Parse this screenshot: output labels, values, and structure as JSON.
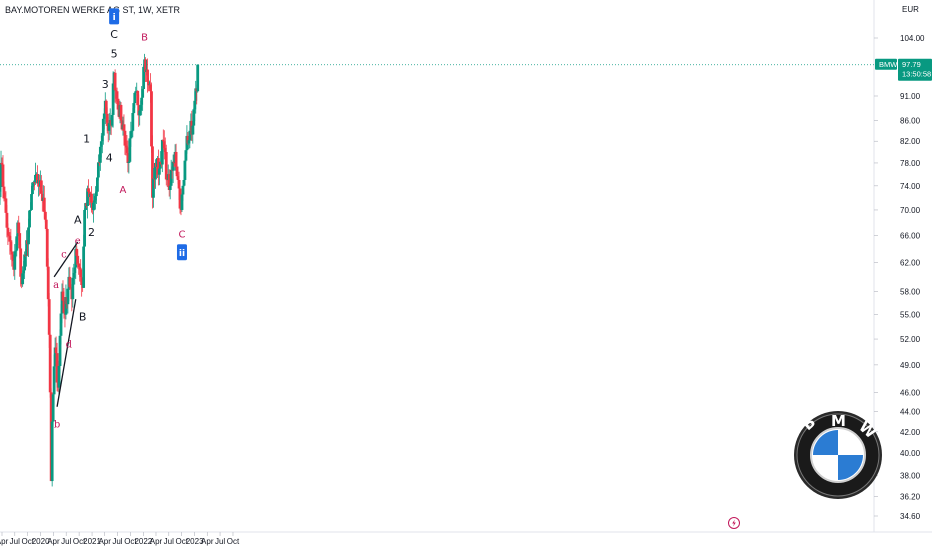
{
  "header": {
    "symbol_title": "BAY.MOTOREN WERKE AG ST, 1W, XETR",
    "currency": "EUR"
  },
  "price_badge": {
    "ticker": "BMW",
    "price": "97.79",
    "countdown": "13:50:58",
    "color": "#089981"
  },
  "colors": {
    "up": "#089981",
    "down": "#f23645",
    "wave_black": "#131722",
    "wave_red": "#c2185b",
    "badge_blue": "#1e6be6"
  },
  "chart_data": {
    "type": "candlestick",
    "title": "BAY.MOTOREN WERKE AG ST, 1W, XETR",
    "xlabel": "",
    "ylabel": "EUR",
    "ylim": [
      33.5,
      107
    ],
    "y_scale": "log",
    "grid": false,
    "y_ticks": [
      "104.00",
      "97.79",
      "91.00",
      "86.00",
      "82.00",
      "78.00",
      "74.00",
      "70.00",
      "66.00",
      "62.00",
      "58.00",
      "55.00",
      "52.00",
      "49.00",
      "46.00",
      "44.00",
      "42.00",
      "40.00",
      "38.00",
      "36.20",
      "34.60"
    ],
    "x_ticks": [
      {
        "label": "Apr",
        "date": "2019-04-01"
      },
      {
        "label": "Jul",
        "date": "2019-07-01"
      },
      {
        "label": "Oct",
        "date": "2019-10-01"
      },
      {
        "label": "2020",
        "date": "2020-01-01"
      },
      {
        "label": "Apr",
        "date": "2020-04-01"
      },
      {
        "label": "Jul",
        "date": "2020-07-01"
      },
      {
        "label": "Oct",
        "date": "2020-10-01"
      },
      {
        "label": "2021",
        "date": "2021-01-01"
      },
      {
        "label": "Apr",
        "date": "2021-04-01"
      },
      {
        "label": "Jul",
        "date": "2021-07-01"
      },
      {
        "label": "Oct",
        "date": "2021-10-01"
      },
      {
        "label": "2022",
        "date": "2022-01-01"
      },
      {
        "label": "Apr",
        "date": "2022-04-01"
      },
      {
        "label": "Jul",
        "date": "2022-07-01"
      },
      {
        "label": "Oct",
        "date": "2022-10-01"
      },
      {
        "label": "2023",
        "date": "2023-01-01"
      },
      {
        "label": "Apr",
        "date": "2023-04-01"
      },
      {
        "label": "Jul",
        "date": "2023-07-01"
      },
      {
        "label": "Oct",
        "date": "2023-10-01"
      }
    ],
    "last_price": 97.79,
    "anchors": [
      {
        "date": "2019-03-11",
        "price": 73
      },
      {
        "date": "2019-03-25",
        "price": 78
      },
      {
        "date": "2019-05-13",
        "price": 66
      },
      {
        "date": "2019-06-24",
        "price": 61
      },
      {
        "date": "2019-07-22",
        "price": 68
      },
      {
        "date": "2019-08-19",
        "price": 59
      },
      {
        "date": "2019-09-16",
        "price": 63
      },
      {
        "date": "2019-10-21",
        "price": 70
      },
      {
        "date": "2019-11-04",
        "price": 74
      },
      {
        "date": "2019-12-16",
        "price": 75
      },
      {
        "date": "2020-01-20",
        "price": 72
      },
      {
        "date": "2020-02-10",
        "price": 67
      },
      {
        "date": "2020-02-24",
        "price": 57
      },
      {
        "date": "2020-03-09",
        "price": 46
      },
      {
        "date": "2020-03-16",
        "price": 37.5
      },
      {
        "date": "2020-03-23",
        "price": 43
      },
      {
        "date": "2020-04-13",
        "price": 51
      },
      {
        "date": "2020-05-04",
        "price": 46.5
      },
      {
        "date": "2020-06-01",
        "price": 58
      },
      {
        "date": "2020-06-22",
        "price": 55
      },
      {
        "date": "2020-07-20",
        "price": 60
      },
      {
        "date": "2020-08-10",
        "price": 57
      },
      {
        "date": "2020-09-07",
        "price": 64
      },
      {
        "date": "2020-10-05",
        "price": 61
      },
      {
        "date": "2020-10-26",
        "price": 58.5
      },
      {
        "date": "2020-11-09",
        "price": 70
      },
      {
        "date": "2020-12-07",
        "price": 73
      },
      {
        "date": "2021-01-04",
        "price": 70
      },
      {
        "date": "2021-02-01",
        "price": 73
      },
      {
        "date": "2021-03-08",
        "price": 82
      },
      {
        "date": "2021-04-05",
        "price": 90
      },
      {
        "date": "2021-04-26",
        "price": 84
      },
      {
        "date": "2021-05-17",
        "price": 85
      },
      {
        "date": "2021-06-07",
        "price": 96
      },
      {
        "date": "2021-06-21",
        "price": 92
      },
      {
        "date": "2021-07-26",
        "price": 86
      },
      {
        "date": "2021-08-16",
        "price": 84
      },
      {
        "date": "2021-09-13",
        "price": 78
      },
      {
        "date": "2021-10-11",
        "price": 84
      },
      {
        "date": "2021-11-08",
        "price": 92
      },
      {
        "date": "2021-12-06",
        "price": 88
      },
      {
        "date": "2022-01-10",
        "price": 99
      },
      {
        "date": "2022-01-31",
        "price": 94
      },
      {
        "date": "2022-02-21",
        "price": 92
      },
      {
        "date": "2022-03-07",
        "price": 72
      },
      {
        "date": "2022-03-28",
        "price": 78
      },
      {
        "date": "2022-04-25",
        "price": 77
      },
      {
        "date": "2022-05-23",
        "price": 82
      },
      {
        "date": "2022-06-20",
        "price": 75
      },
      {
        "date": "2022-07-11",
        "price": 74
      },
      {
        "date": "2022-08-15",
        "price": 80
      },
      {
        "date": "2022-09-05",
        "price": 75
      },
      {
        "date": "2022-09-26",
        "price": 70
      },
      {
        "date": "2022-10-17",
        "price": 75
      },
      {
        "date": "2022-11-07",
        "price": 83
      },
      {
        "date": "2022-11-28",
        "price": 84
      },
      {
        "date": "2022-12-19",
        "price": 85
      },
      {
        "date": "2023-01-02",
        "price": 90
      },
      {
        "date": "2023-01-16",
        "price": 92
      },
      {
        "date": "2023-01-23",
        "price": 97.79
      }
    ],
    "wave_labels": [
      {
        "text": "A",
        "date": "2020-09-21",
        "price": 68.5,
        "color": "black"
      },
      {
        "text": "B",
        "date": "2020-10-26",
        "price": 54.8,
        "color": "black"
      },
      {
        "text": "1",
        "date": "2020-11-23",
        "price": 82.5,
        "color": "black"
      },
      {
        "text": "2",
        "date": "2020-12-28",
        "price": 66.5,
        "color": "black"
      },
      {
        "text": "3",
        "date": "2021-04-05",
        "price": 93.5,
        "color": "black"
      },
      {
        "text": "4",
        "date": "2021-05-03",
        "price": 79,
        "color": "black"
      },
      {
        "text": "C",
        "date": "2021-06-07",
        "price": 105,
        "color": "black"
      },
      {
        "text": "5",
        "date": "2021-06-07",
        "price": 100.3,
        "color": "black"
      },
      {
        "text": "A",
        "date": "2021-08-09",
        "price": 73.5,
        "color": "red"
      },
      {
        "text": "B",
        "date": "2022-01-10",
        "price": 104.3,
        "color": "red"
      },
      {
        "text": "C",
        "date": "2022-10-03",
        "price": 66.3,
        "color": "red"
      },
      {
        "text": "a",
        "date": "2020-04-20",
        "price": 59,
        "color": "red"
      },
      {
        "text": "b",
        "date": "2020-04-27",
        "price": 42.8,
        "color": "red"
      },
      {
        "text": "c",
        "date": "2020-06-15",
        "price": 63.3,
        "color": "red"
      },
      {
        "text": "d",
        "date": "2020-07-20",
        "price": 51.5,
        "color": "red"
      },
      {
        "text": "e",
        "date": "2020-09-21",
        "price": 65.3,
        "color": "red"
      }
    ],
    "wave_badges": [
      {
        "text": "i",
        "date": "2021-06-07",
        "price": 109.3
      },
      {
        "text": "ii",
        "date": "2022-10-03",
        "price": 63.5
      }
    ],
    "trendlines": [
      {
        "from": {
          "date": "2020-04-06",
          "price": 60
        },
        "to": {
          "date": "2020-09-21",
          "price": 65
        }
      },
      {
        "from": {
          "date": "2020-04-27",
          "price": 44.5
        },
        "to": {
          "date": "2020-09-07",
          "price": 57
        }
      }
    ]
  },
  "logo": {
    "brand_text": "BMW"
  }
}
